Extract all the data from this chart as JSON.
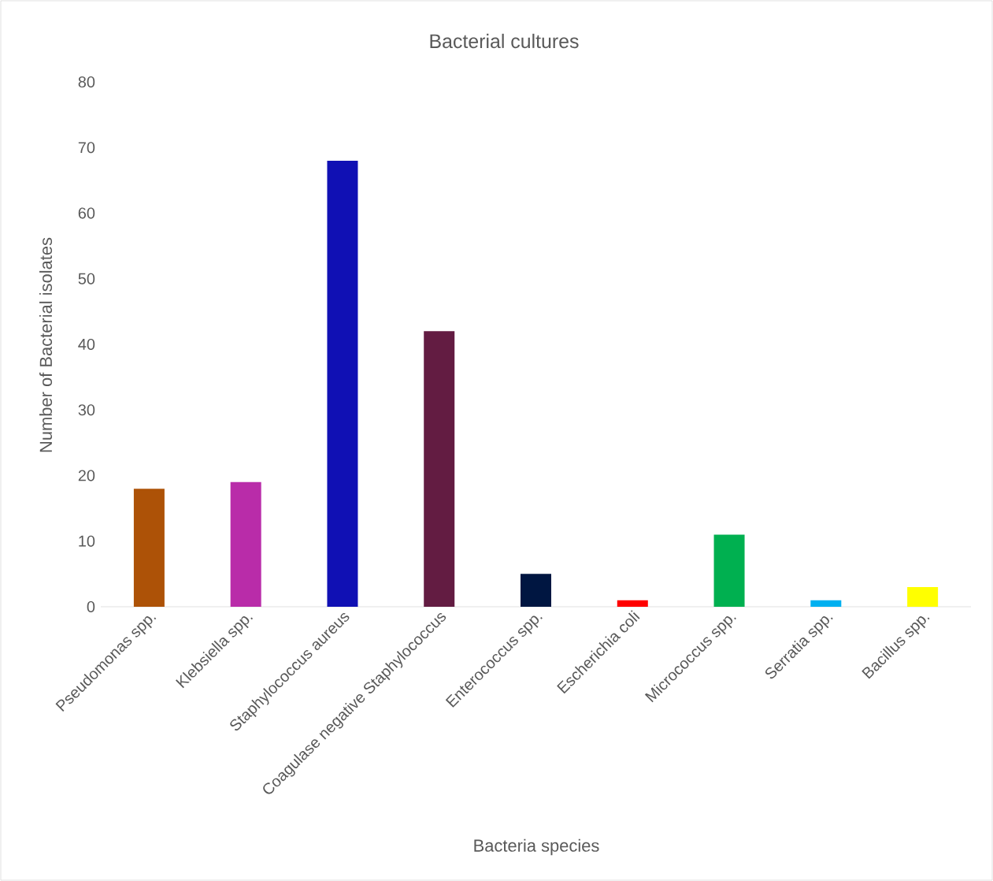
{
  "chart_data": {
    "type": "bar",
    "title": "Bacterial cultures",
    "xlabel": "Bacteria  species",
    "ylabel": "Number of Bacterial isolates",
    "categories": [
      "Pseudomonas spp.",
      "Klebsiella spp.",
      "Staphylococcus aureus",
      "Coagulase negative Staphylococcus",
      "Enterococcus spp.",
      "Escherichia coli",
      "Micrococcus spp.",
      "Serratia spp.",
      "Bacillus spp."
    ],
    "values": [
      18,
      19,
      68,
      42,
      5,
      1,
      11,
      1,
      3
    ],
    "colors": [
      "#ad5207",
      "#b92ca9",
      "#1010b4",
      "#631c42",
      "#001641",
      "#ff0000",
      "#00b050",
      "#00b0f0",
      "#ffff00"
    ],
    "ylim": [
      0,
      80
    ],
    "yticks": [
      0,
      10,
      20,
      30,
      40,
      50,
      60,
      70,
      80
    ],
    "grid": false
  }
}
